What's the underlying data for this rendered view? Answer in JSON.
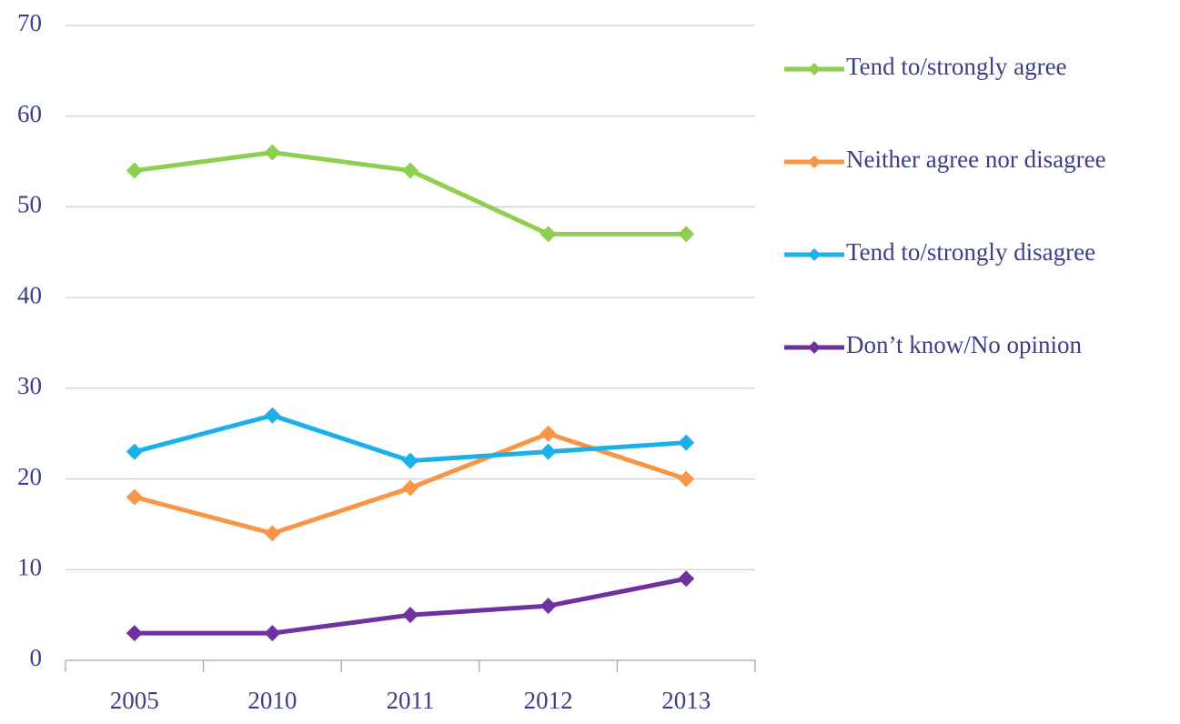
{
  "chart_data": {
    "type": "line",
    "categories": [
      "2005",
      "2010",
      "2011",
      "2012",
      "2013"
    ],
    "series": [
      {
        "name": "Tend to/strongly agree",
        "color": "#8fcf4f",
        "values": [
          54,
          56,
          54,
          47,
          47
        ]
      },
      {
        "name": "Neither agree nor disagree",
        "color": "#f79646",
        "values": [
          18,
          14,
          19,
          25,
          20
        ]
      },
      {
        "name": "Tend to/strongly disagree",
        "color": "#1cb0ea",
        "values": [
          23,
          27,
          22,
          23,
          24
        ]
      },
      {
        "name": "Don’t know/No opinion",
        "color": "#7030a0",
        "values": [
          3,
          3,
          5,
          6,
          9
        ]
      }
    ],
    "ylim": [
      0,
      70
    ],
    "yticks": [
      0,
      10,
      20,
      30,
      40,
      50,
      60,
      70
    ],
    "grid": true,
    "legend": "right"
  }
}
